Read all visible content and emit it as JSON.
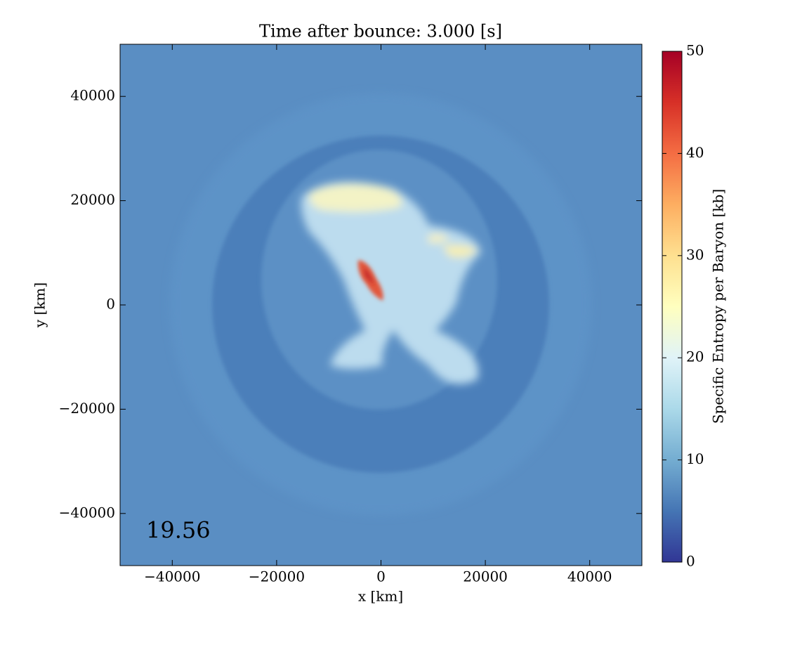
{
  "chart_data": {
    "type": "image",
    "title": "Time after bounce: 3.000 [s]",
    "x_label": "x [km]",
    "y_label": "y [km]",
    "annotation": "19.56",
    "xlim": [
      -50000,
      50000
    ],
    "ylim": [
      -50000,
      50000
    ],
    "xticks": [
      {
        "value": -40000,
        "label": "−40000"
      },
      {
        "value": -20000,
        "label": "−20000"
      },
      0,
      20000,
      40000
    ],
    "yticks": [
      {
        "value": -40000,
        "label": "−40000"
      },
      {
        "value": -20000,
        "label": "−20000"
      },
      0,
      20000,
      40000
    ],
    "colorbar": {
      "label": "Specific Entropy per Baryon [kb]",
      "lim": [
        0,
        50
      ],
      "ticks": [
        0,
        10,
        20,
        30,
        40,
        50
      ],
      "colors": [
        "#313695",
        "#4575b4",
        "#74add1",
        "#abd9e9",
        "#e0f3f8",
        "#ffffbf",
        "#fee090",
        "#fdae61",
        "#f46d43",
        "#d73027",
        "#a50026"
      ]
    }
  }
}
